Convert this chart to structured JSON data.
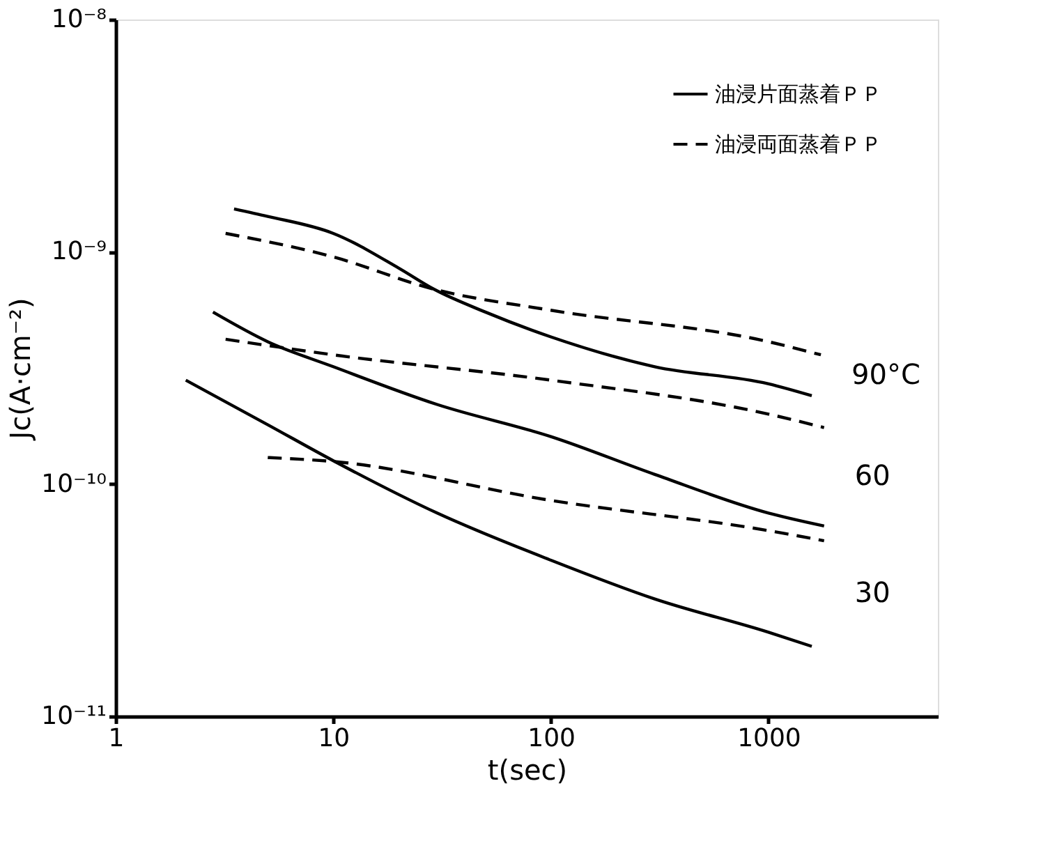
{
  "chart_data": {
    "type": "line",
    "xlabel": "t(sec)",
    "ylabel": "Jc(A·cm⁻²)",
    "log": "xy",
    "xlim": [
      1,
      6000
    ],
    "xticks": [
      1,
      10,
      100,
      1000
    ],
    "ylim": [
      1e-11,
      1e-08
    ],
    "yticks": [
      {
        "value": 1e-11,
        "label": "10⁻¹¹"
      },
      {
        "value": 1e-10,
        "label": "10⁻¹⁰"
      },
      {
        "value": 1e-09,
        "label": "10⁻⁹"
      },
      {
        "value": 1e-08,
        "label": "10⁻⁸"
      }
    ],
    "grid": false,
    "legend": "top right",
    "marker": "none",
    "series": [
      {
        "name": "油浸片面蒸着ＰＰ",
        "color": "#000000",
        "line_style": "solid",
        "x": [
          3.5,
          5,
          10,
          20,
          29,
          50,
          100,
          300,
          1000,
          1580
        ],
        "values": [
          1.53e-09,
          1.42e-09,
          1.2e-09,
          8.5e-10,
          6.9e-10,
          5.5e-10,
          4.3e-10,
          3.2e-10,
          2.7e-10,
          2.4e-10
        ]
      },
      {
        "name": "油浸両面蒸着ＰＰ",
        "color": "#000000",
        "line_style": "dashed",
        "x": [
          3.2,
          10,
          29,
          100,
          1000,
          1740
        ],
        "values": [
          1.2e-09,
          9.5e-10,
          6.9e-10,
          5.6e-10,
          4.1e-10,
          3.6e-10
        ]
      },
      {
        "color": "#000000",
        "line_style": "solid",
        "x": [
          2.8,
          5,
          10,
          30,
          100,
          300,
          1000,
          1800
        ],
        "values": [
          5.5e-10,
          4.1e-10,
          3.2e-10,
          2.2e-10,
          1.6e-10,
          1.1e-10,
          7.5e-11,
          6.6e-11
        ]
      },
      {
        "color": "#000000",
        "line_style": "dashed",
        "x": [
          3.2,
          10,
          100,
          1000,
          1800
        ],
        "values": [
          4.2e-10,
          3.6e-10,
          2.8e-10,
          2e-10,
          1.75e-10
        ]
      },
      {
        "color": "#000000",
        "line_style": "solid",
        "x": [
          2.1,
          5,
          10,
          30,
          100,
          300,
          1000,
          1580
        ],
        "values": [
          2.8e-10,
          1.8e-10,
          1.26e-10,
          7.5e-11,
          4.7e-11,
          3.2e-11,
          2.3e-11,
          2e-11
        ]
      },
      {
        "color": "#000000",
        "line_style": "dashed",
        "x": [
          5.0,
          10,
          100,
          1000,
          1800
        ],
        "values": [
          1.3e-10,
          1.25e-10,
          8.5e-11,
          6.3e-11,
          5.7e-11
        ]
      }
    ],
    "annotations": [
      "90°C",
      "60",
      "30"
    ]
  }
}
